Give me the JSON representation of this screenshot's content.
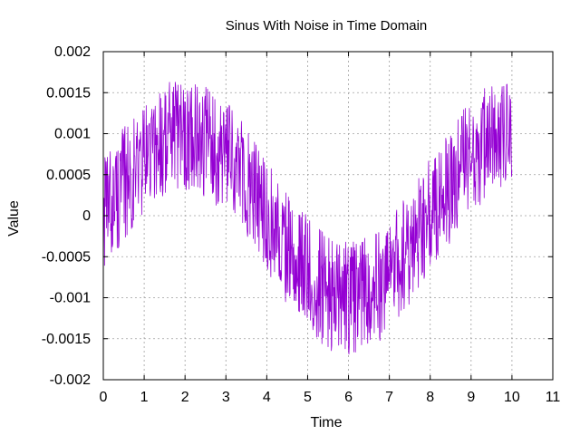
{
  "chart_data": {
    "type": "line",
    "title": "Sinus With Noise in Time Domain",
    "xlabel": "Time",
    "ylabel": "Value",
    "xlim": [
      0,
      11
    ],
    "ylim": [
      -0.002,
      0.002
    ],
    "xticks": [
      "0",
      "1",
      "2",
      "3",
      "4",
      "5",
      "6",
      "7",
      "8",
      "9",
      "10",
      "11"
    ],
    "yticks": [
      "-0.002",
      "-0.0015",
      "-0.001",
      "-0.0005",
      "0",
      "0.0005",
      "0.001",
      "0.0015",
      "0.002"
    ],
    "grid": true,
    "series": [
      {
        "color": "#9400d3",
        "x_range": [
          0,
          10
        ],
        "signal": "sine",
        "amplitude": 0.001,
        "frequency": 0.125,
        "noise_amplitude": 0.0007,
        "noise_sample_step": 0.01
      }
    ]
  }
}
